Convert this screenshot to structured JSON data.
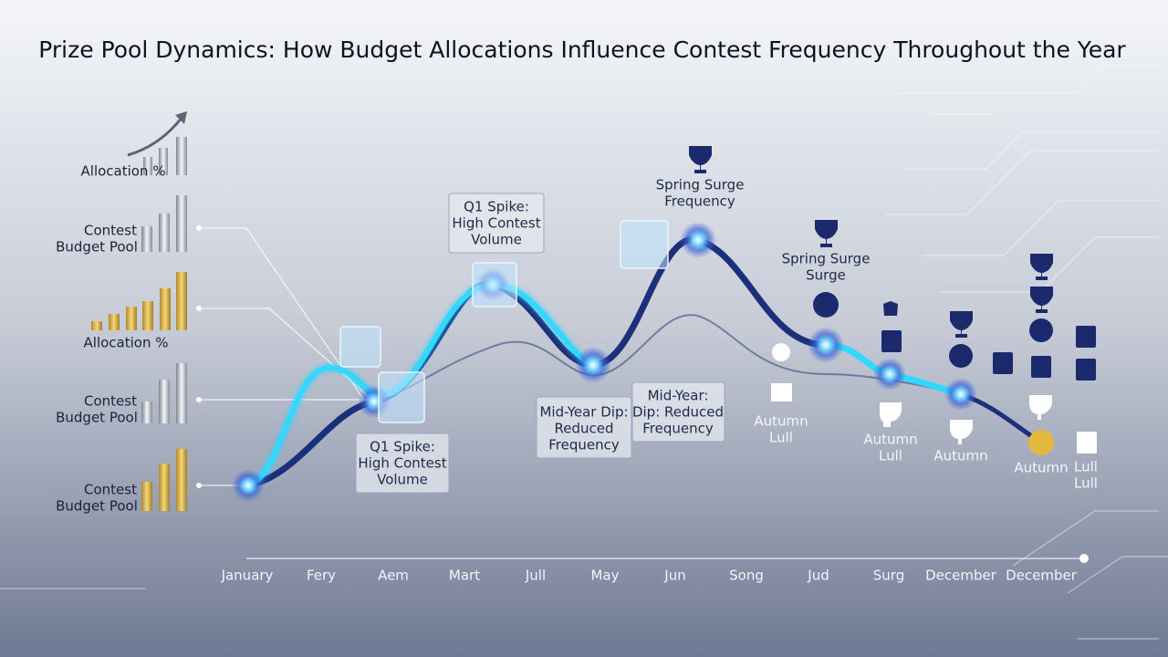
{
  "header": {
    "title": "Prize Pool Dynamics: How Budget Allocations Influence Contest Frequency Throughout the Year"
  },
  "legend": [
    {
      "lines": [
        "Allocation %"
      ]
    },
    {
      "lines": [
        "Contest",
        "Budget Pool"
      ]
    },
    {
      "lines": [
        "Allocation %"
      ]
    },
    {
      "lines": [
        "Contest",
        "Budget Pool"
      ]
    },
    {
      "lines": [
        "Contest",
        "Budget Pool"
      ]
    }
  ],
  "annotations": [
    {
      "lines": [
        "Q1 Spike:",
        "High Contest",
        "Volume"
      ]
    },
    {
      "lines": [
        "Q1 Spike:",
        "High Contest",
        "Volume"
      ]
    },
    {
      "lines": [
        "Mid-Year Dip:",
        "Reduced",
        "Frequency"
      ]
    },
    {
      "lines": [
        "Mid-Year:",
        "Dip: Reduced",
        "Frequency"
      ]
    },
    {
      "lines": [
        "Spring Surge",
        "Frequency"
      ]
    },
    {
      "lines": [
        "Spring Surge",
        "Surge"
      ]
    },
    {
      "lines": [
        "Autumn",
        "Lull"
      ]
    },
    {
      "lines": [
        "Autumn",
        "Lull"
      ]
    },
    {
      "lines": [
        "Autumn"
      ]
    },
    {
      "lines": [
        "Autumn"
      ]
    },
    {
      "lines": [
        "Lull",
        "Lull"
      ]
    }
  ],
  "x_labels": [
    "January",
    "Fery",
    "Aem",
    "Mart",
    "Jull",
    "May",
    "Jun",
    "Song",
    "Jud",
    "Surg",
    "December",
    "December"
  ]
}
